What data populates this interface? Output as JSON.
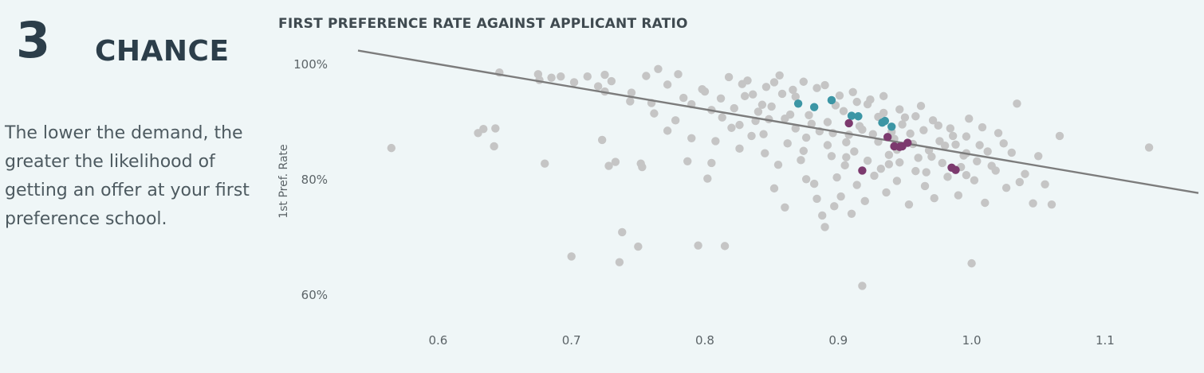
{
  "panel": {
    "number": "3",
    "title": "CHANCE",
    "description": "The lower the demand, the greater the likelihood of getting an offer at your first preference school."
  },
  "colors": {
    "background": "#eff6f7",
    "points_other": "#c5c5c5",
    "points_teal": "#3c96a5",
    "points_purple": "#7c3a6e",
    "trend_line": "#7c7c7c"
  },
  "chart_data": {
    "type": "scatter",
    "title": "FIRST PREFERENCE RATE AGAINST APPLICANT RATIO",
    "xlabel": "",
    "ylabel": "1st Pref. Rate",
    "x_ticks": [
      "0.6",
      "0.7",
      "0.8",
      "0.9",
      "1.0",
      "1.1"
    ],
    "x_tick_values": [
      0.6,
      0.7,
      0.8,
      0.9,
      1.0,
      1.1
    ],
    "y_ticks": [
      "100%",
      "80%",
      "60%"
    ],
    "y_tick_values": [
      100,
      80,
      60
    ],
    "xlim": [
      0.54,
      1.17
    ],
    "ylim": [
      56,
      104
    ],
    "grid": false,
    "trend_line": {
      "x": [
        0.54,
        1.17
      ],
      "y": [
        102.4,
        77.7
      ]
    },
    "series": [
      {
        "color_key": "points_teal",
        "points": [
          [
            0.87,
            93.2
          ],
          [
            0.882,
            92.6
          ],
          [
            0.895,
            93.8
          ],
          [
            0.91,
            91.1
          ],
          [
            0.915,
            91.0
          ],
          [
            0.933,
            89.9
          ],
          [
            0.935,
            90.2
          ],
          [
            0.94,
            89.2
          ]
        ]
      },
      {
        "color_key": "points_purple",
        "points": [
          [
            0.908,
            89.8
          ],
          [
            0.918,
            81.6
          ],
          [
            0.937,
            87.4
          ],
          [
            0.942,
            85.8
          ],
          [
            0.946,
            85.7
          ],
          [
            0.948,
            85.8
          ],
          [
            0.952,
            86.4
          ],
          [
            0.985,
            82.1
          ],
          [
            0.988,
            81.7
          ]
        ]
      },
      {
        "color_key": "points_other",
        "points": [
          [
            0.565,
            85.5
          ],
          [
            0.63,
            88.1
          ],
          [
            0.634,
            88.8
          ],
          [
            0.642,
            85.8
          ],
          [
            0.643,
            88.9
          ],
          [
            0.646,
            98.6
          ],
          [
            0.675,
            98.3
          ],
          [
            0.676,
            97.3
          ],
          [
            0.68,
            82.8
          ],
          [
            0.685,
            97.7
          ],
          [
            0.692,
            97.9
          ],
          [
            0.7,
            66.7
          ],
          [
            0.702,
            96.9
          ],
          [
            0.712,
            97.9
          ],
          [
            0.72,
            96.2
          ],
          [
            0.723,
            86.9
          ],
          [
            0.725,
            95.3
          ],
          [
            0.725,
            98.2
          ],
          [
            0.728,
            82.4
          ],
          [
            0.73,
            97.1
          ],
          [
            0.733,
            83.1
          ],
          [
            0.736,
            65.7
          ],
          [
            0.738,
            70.9
          ],
          [
            0.745,
            95.1
          ],
          [
            0.75,
            68.4
          ],
          [
            0.752,
            82.8
          ],
          [
            0.753,
            82.2
          ],
          [
            0.76,
            93.3
          ],
          [
            0.765,
            99.2
          ],
          [
            0.772,
            88.5
          ],
          [
            0.778,
            90.3
          ],
          [
            0.78,
            98.3
          ],
          [
            0.787,
            83.2
          ],
          [
            0.79,
            87.2
          ],
          [
            0.795,
            68.6
          ],
          [
            0.8,
            95.3
          ],
          [
            0.802,
            80.2
          ],
          [
            0.805,
            92.1
          ],
          [
            0.808,
            86.7
          ],
          [
            0.813,
            90.8
          ],
          [
            0.815,
            68.5
          ],
          [
            0.82,
            89.0
          ],
          [
            0.826,
            85.4
          ],
          [
            0.83,
            94.5
          ],
          [
            0.835,
            87.6
          ],
          [
            0.84,
            91.8
          ],
          [
            0.843,
            93.0
          ],
          [
            0.845,
            84.6
          ],
          [
            0.848,
            90.5
          ],
          [
            0.852,
            78.5
          ],
          [
            0.855,
            82.6
          ],
          [
            0.858,
            94.9
          ],
          [
            0.86,
            75.2
          ],
          [
            0.862,
            86.3
          ],
          [
            0.868,
            88.9
          ],
          [
            0.872,
            83.4
          ],
          [
            0.876,
            80.1
          ],
          [
            0.878,
            91.2
          ],
          [
            0.882,
            79.3
          ],
          [
            0.884,
            76.7
          ],
          [
            0.886,
            88.4
          ],
          [
            0.888,
            73.8
          ],
          [
            0.89,
            71.8
          ],
          [
            0.892,
            86.0
          ],
          [
            0.895,
            84.1
          ],
          [
            0.897,
            75.4
          ],
          [
            0.899,
            80.4
          ],
          [
            0.902,
            77.1
          ],
          [
            0.905,
            82.5
          ],
          [
            0.908,
            87.8
          ],
          [
            0.91,
            74.1
          ],
          [
            0.912,
            84.9
          ],
          [
            0.914,
            79.1
          ],
          [
            0.916,
            89.3
          ],
          [
            0.918,
            61.6
          ],
          [
            0.92,
            76.3
          ],
          [
            0.922,
            83.3
          ],
          [
            0.924,
            93.9
          ],
          [
            0.927,
            80.7
          ],
          [
            0.93,
            86.6
          ],
          [
            0.932,
            81.9
          ],
          [
            0.934,
            91.6
          ],
          [
            0.936,
            77.8
          ],
          [
            0.938,
            84.3
          ],
          [
            0.94,
            88.3
          ],
          [
            0.944,
            79.8
          ],
          [
            0.946,
            83.0
          ],
          [
            0.95,
            90.8
          ],
          [
            0.953,
            75.7
          ],
          [
            0.956,
            86.2
          ],
          [
            0.958,
            81.5
          ],
          [
            0.962,
            92.8
          ],
          [
            0.965,
            78.9
          ],
          [
            0.968,
            85.1
          ],
          [
            0.972,
            76.8
          ],
          [
            0.975,
            89.4
          ],
          [
            0.978,
            82.9
          ],
          [
            0.982,
            80.5
          ],
          [
            0.986,
            87.6
          ],
          [
            0.99,
            77.3
          ],
          [
            0.994,
            84.2
          ],
          [
            0.998,
            90.6
          ],
          [
            1.0,
            65.5
          ],
          [
            1.002,
            79.9
          ],
          [
            1.006,
            86.0
          ],
          [
            1.01,
            76.0
          ],
          [
            1.015,
            82.4
          ],
          [
            1.02,
            88.1
          ],
          [
            1.026,
            78.6
          ],
          [
            1.03,
            84.7
          ],
          [
            1.034,
            93.2
          ],
          [
            1.04,
            81.0
          ],
          [
            1.046,
            75.9
          ],
          [
            1.05,
            84.1
          ],
          [
            1.055,
            79.2
          ],
          [
            1.06,
            75.7
          ],
          [
            1.066,
            87.6
          ],
          [
            1.133,
            85.6
          ],
          [
            0.805,
            82.9
          ],
          [
            0.832,
            97.2
          ],
          [
            0.846,
            96.1
          ],
          [
            0.856,
            98.1
          ],
          [
            0.866,
            95.6
          ],
          [
            0.874,
            97.0
          ],
          [
            0.89,
            96.4
          ],
          [
            0.901,
            94.6
          ],
          [
            0.911,
            95.2
          ],
          [
            0.922,
            93.1
          ],
          [
            0.934,
            94.5
          ],
          [
            0.946,
            92.2
          ],
          [
            0.958,
            91.0
          ],
          [
            0.971,
            90.3
          ],
          [
            0.984,
            88.9
          ],
          [
            0.996,
            87.5
          ],
          [
            1.008,
            89.1
          ],
          [
            0.79,
            93.1
          ],
          [
            0.798,
            95.7
          ],
          [
            0.812,
            94.1
          ],
          [
            0.822,
            92.4
          ],
          [
            0.828,
            96.6
          ],
          [
            0.838,
            90.2
          ],
          [
            0.85,
            92.7
          ],
          [
            0.864,
            91.3
          ],
          [
            0.88,
            89.7
          ],
          [
            0.896,
            88.1
          ],
          [
            0.906,
            86.5
          ],
          [
            0.926,
            87.9
          ],
          [
            0.944,
            85.2
          ],
          [
            0.96,
            83.8
          ],
          [
            0.976,
            86.7
          ],
          [
            0.992,
            82.2
          ],
          [
            1.012,
            84.9
          ],
          [
            1.024,
            86.3
          ],
          [
            0.818,
            97.8
          ],
          [
            0.836,
            94.8
          ],
          [
            0.852,
            96.9
          ],
          [
            0.868,
            94.4
          ],
          [
            0.884,
            95.9
          ],
          [
            0.898,
            92.9
          ],
          [
            0.914,
            93.5
          ],
          [
            0.93,
            90.9
          ],
          [
            0.948,
            89.6
          ],
          [
            0.964,
            88.6
          ],
          [
            0.98,
            85.9
          ],
          [
            0.996,
            84.6
          ],
          [
            0.86,
            90.6
          ],
          [
            0.876,
            87.3
          ],
          [
            0.892,
            90.0
          ],
          [
            0.904,
            91.9
          ],
          [
            0.918,
            88.7
          ],
          [
            0.942,
            87.1
          ],
          [
            0.954,
            88.0
          ],
          [
            0.97,
            84.0
          ],
          [
            0.988,
            86.1
          ],
          [
            1.004,
            83.2
          ],
          [
            1.018,
            81.6
          ],
          [
            0.826,
            89.5
          ],
          [
            0.844,
            87.9
          ],
          [
            0.874,
            85.0
          ],
          [
            0.906,
            83.9
          ],
          [
            0.938,
            82.7
          ],
          [
            0.966,
            81.3
          ],
          [
            0.996,
            80.8
          ],
          [
            1.036,
            79.6
          ],
          [
            0.772,
            96.5
          ],
          [
            0.784,
            94.2
          ],
          [
            0.762,
            91.5
          ],
          [
            0.756,
            98.0
          ],
          [
            0.744,
            93.6
          ]
        ]
      }
    ]
  }
}
